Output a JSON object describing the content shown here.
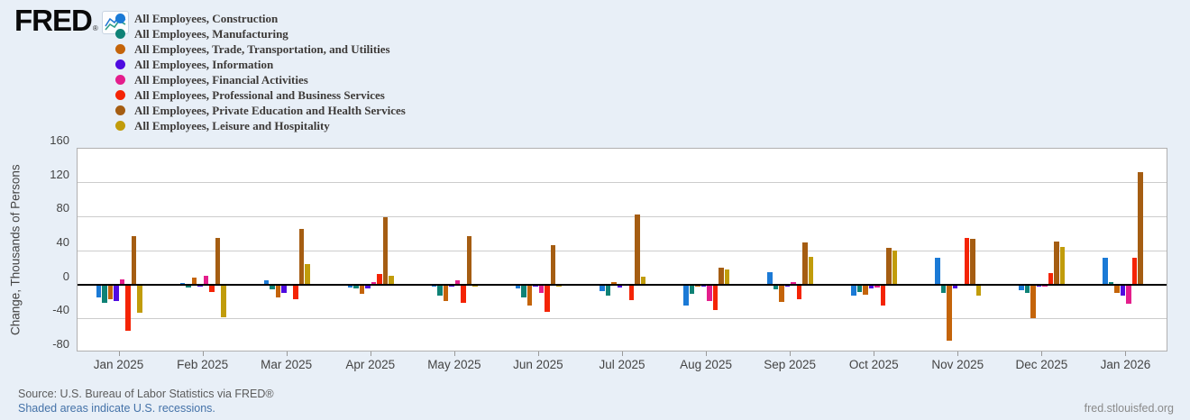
{
  "header": {
    "logo_text": "FRED",
    "logo_reg_mark": "®"
  },
  "footer": {
    "source": "Source: U.S. Bureau of Labor Statistics via FRED®",
    "recession_note": "Shaded areas indicate U.S. recessions.",
    "site_link": "fred.stlouisfed.org"
  },
  "chart_data": {
    "type": "bar",
    "title": "",
    "xlabel": "",
    "ylabel": "Change, Thousands of Persons",
    "ylim": [
      -80,
      160
    ],
    "yticks": [
      160,
      120,
      80,
      40,
      0,
      -40,
      -80
    ],
    "grid": true,
    "legend_position": "top-left",
    "categories": [
      "Jan 2025",
      "Feb 2025",
      "Mar 2025",
      "Apr 2025",
      "May 2025",
      "Jun 2025",
      "Jul 2025",
      "Aug 2025",
      "Sep 2025",
      "Oct 2025",
      "Nov 2025",
      "Dec 2025",
      "Jan 2026"
    ],
    "series": [
      {
        "name": "All Employees, Construction",
        "color": "#1b7ad6",
        "values": [
          -15,
          2,
          5,
          -4,
          -3,
          -5,
          -8,
          -25,
          14,
          -13,
          32,
          -7,
          31
        ]
      },
      {
        "name": "All Employees, Manufacturing",
        "color": "#0f8276",
        "values": [
          -22,
          -4,
          -6,
          -5,
          -13,
          -15,
          -13,
          -11,
          -6,
          -9,
          -10,
          -10,
          3
        ]
      },
      {
        "name": "All Employees, Trade, Transportation, and Utilities",
        "color": "#c4640a",
        "values": [
          -17,
          8,
          -15,
          -11,
          -20,
          -25,
          3,
          -3,
          -21,
          -12,
          -66,
          -40,
          -10
        ]
      },
      {
        "name": "All Employees, Information",
        "color": "#4f0be0",
        "values": [
          -20,
          -3,
          -10,
          -5,
          -2,
          -3,
          -4,
          -2,
          -2,
          -5,
          -5,
          -3,
          -13
        ]
      },
      {
        "name": "All Employees, Financial Activities",
        "color": "#e41e8c",
        "values": [
          6,
          10,
          0,
          3,
          5,
          -10,
          0,
          -20,
          3,
          -4,
          0,
          -2,
          -23
        ]
      },
      {
        "name": "All Employees, Professional and Business Services",
        "color": "#f42405",
        "values": [
          -55,
          -9,
          -17,
          12,
          -22,
          -32,
          -18,
          -30,
          -17,
          -25,
          55,
          13,
          32
        ]
      },
      {
        "name": "All Employees, Private Education and Health Services",
        "color": "#a55d12",
        "values": [
          57,
          55,
          65,
          79,
          57,
          46,
          82,
          20,
          50,
          43,
          54,
          51,
          132
        ]
      },
      {
        "name": "All Employees, Leisure and Hospitality",
        "color": "#c19c0b",
        "values": [
          -33,
          -39,
          24,
          10,
          -2,
          -3,
          9,
          18,
          33,
          40,
          -13,
          44,
          0
        ]
      }
    ]
  }
}
